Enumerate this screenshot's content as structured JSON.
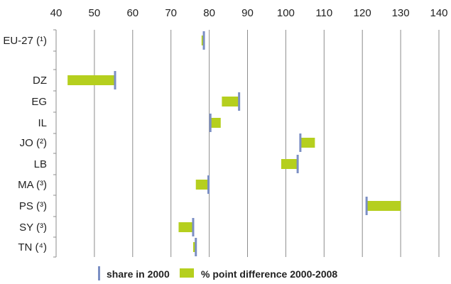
{
  "chart_data": {
    "type": "bar",
    "subtype": "floating-range",
    "title": "",
    "xlabel": "",
    "ylabel": "",
    "xlim": [
      40,
      140
    ],
    "x_ticks": [
      40,
      50,
      60,
      70,
      80,
      90,
      100,
      110,
      120,
      130,
      140
    ],
    "x_tick_labels": [
      "40",
      "50",
      "60",
      "70",
      "80",
      "90",
      "100",
      "110",
      "120",
      "130",
      "140"
    ],
    "x_axis_position": "top",
    "grid": "vertical",
    "legend_position": "bottom",
    "categories": [
      "EU-27 (¹)",
      "DZ",
      "EG",
      "IL",
      "JO (²)",
      "LB",
      "MA (³)",
      "PS (³)",
      "SY (³)",
      "TN (⁴)"
    ],
    "series": [
      {
        "name": "share in 2000",
        "marker": "vertical-bar",
        "color": "#7b8fc4",
        "values": [
          78.6,
          55.4,
          87.8,
          80.3,
          103.8,
          103.1,
          79.8,
          121.1,
          75.8,
          76.5
        ]
      },
      {
        "name": "% point difference 2000-2008",
        "marker": "bar",
        "color": "#b5cf1e",
        "values": [
          -0.6,
          -12.4,
          -4.5,
          2.7,
          3.8,
          -4.3,
          -3.3,
          8.9,
          -3.8,
          -0.7
        ]
      }
    ]
  }
}
